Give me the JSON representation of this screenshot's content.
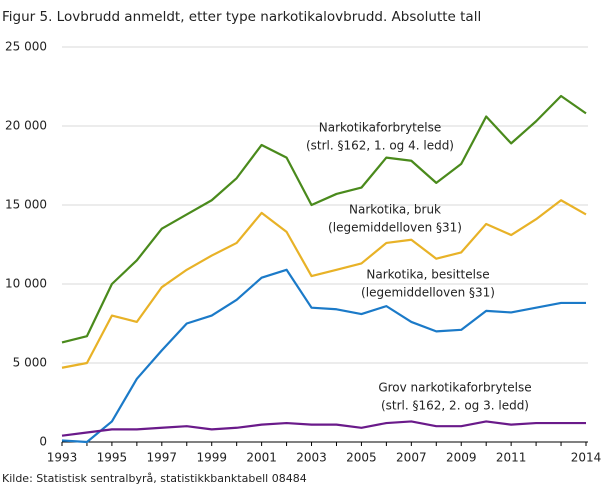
{
  "chart_data": {
    "type": "line",
    "title": "Figur 5. Lovbrudd anmeldt, etter type narkotikalovbrudd. Absolutte tall",
    "source": "Kilde: Statistisk sentralbyrå, statistikkbanktabell 08484",
    "x": [
      1993,
      1994,
      1995,
      1996,
      1997,
      1998,
      1999,
      2000,
      2001,
      2002,
      2003,
      2004,
      2005,
      2006,
      2007,
      2008,
      2009,
      2010,
      2011,
      2012,
      2013,
      2014
    ],
    "xlim": [
      1993,
      2014
    ],
    "xticks": [
      1993,
      1995,
      1997,
      1999,
      2001,
      2003,
      2005,
      2007,
      2009,
      2011,
      2014
    ],
    "ylim": [
      0,
      25000
    ],
    "yticks": [
      0,
      {
        "value": 5000,
        "label": "5 000"
      },
      {
        "value": 10000,
        "label": "10 000"
      },
      {
        "value": 15000,
        "label": "15 000"
      },
      {
        "value": 20000,
        "label": "20 000"
      },
      {
        "value": 25000,
        "label": "25 000"
      }
    ],
    "grid": true,
    "series": [
      {
        "name": "Narkotikaforbrytelse",
        "detail": "(strl. §162,  1. og 4. ledd)",
        "color": "#4a8a1c",
        "values": [
          6300,
          6700,
          10000,
          11500,
          13500,
          14400,
          15300,
          16700,
          18800,
          18000,
          15000,
          15700,
          16100,
          18000,
          17800,
          16400,
          17600,
          20600,
          18900,
          20300,
          21900,
          20800
        ]
      },
      {
        "name": "Narkotika, bruk",
        "detail": "(legemiddelloven  §31)",
        "color": "#e8b227",
        "values": [
          4700,
          5000,
          8000,
          7600,
          9800,
          10900,
          11800,
          12600,
          14500,
          13300,
          10500,
          10900,
          11300,
          12600,
          12800,
          11600,
          12000,
          13800,
          13100,
          14100,
          15300,
          14400
        ]
      },
      {
        "name": "Narkotika, besittelse",
        "detail": "(legemiddelloven  §31)",
        "color": "#1b7ac8",
        "values": [
          100,
          0,
          1300,
          4000,
          5800,
          7500,
          8000,
          9000,
          10400,
          10900,
          8500,
          8400,
          8100,
          8600,
          7600,
          7000,
          7100,
          8300,
          8200,
          8500,
          8800,
          8800
        ]
      },
      {
        "name": "Grov narkotikaforbrytelse",
        "detail": "(strl. §162,  2. og 3. ledd)",
        "color": "#6a1a8a",
        "values": [
          400,
          600,
          800,
          800,
          900,
          1000,
          800,
          900,
          1100,
          1200,
          1100,
          1100,
          900,
          1200,
          1300,
          1000,
          1000,
          1300,
          1100,
          1200,
          1200,
          1200
        ]
      }
    ]
  }
}
